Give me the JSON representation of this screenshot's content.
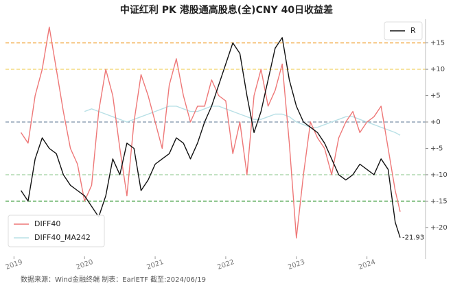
{
  "chart_data": {
    "type": "line",
    "title": "中证红利 PK 港股通高股息(全)CNY 40日收益差",
    "source": "数据来源：Wind金融终端 制表：EarlETF 截至:2024/06/19",
    "x": [
      2019.1,
      2019.2,
      2019.3,
      2019.4,
      2019.5,
      2019.6,
      2019.7,
      2019.8,
      2019.9,
      2020.0,
      2020.1,
      2020.2,
      2020.3,
      2020.4,
      2020.5,
      2020.6,
      2020.7,
      2020.8,
      2020.9,
      2021.0,
      2021.1,
      2021.2,
      2021.3,
      2021.4,
      2021.5,
      2021.6,
      2021.7,
      2021.8,
      2021.9,
      2022.0,
      2022.1,
      2022.2,
      2022.3,
      2022.4,
      2022.5,
      2022.6,
      2022.7,
      2022.8,
      2022.9,
      2023.0,
      2023.1,
      2023.2,
      2023.3,
      2023.4,
      2023.5,
      2023.6,
      2023.7,
      2023.8,
      2023.9,
      2024.0,
      2024.1,
      2024.2,
      2024.3,
      2024.4,
      2024.47
    ],
    "series": [
      {
        "name": "R",
        "color": "#111111",
        "legend_loc": "upper right",
        "values": [
          -13,
          -15,
          -7,
          -3,
          -5,
          -6,
          -10,
          -12,
          -13,
          -14,
          -16,
          -18,
          -14,
          -7,
          -10,
          -4,
          -5,
          -13,
          -11,
          -8,
          -7,
          -6,
          -3,
          -4,
          -7,
          -4,
          0,
          3,
          7,
          11,
          15,
          13,
          5,
          -2,
          2,
          8,
          14,
          16,
          8,
          3,
          0,
          -1,
          -2,
          -4,
          -7,
          -10,
          -11,
          -10,
          -8,
          -9,
          -10,
          -7,
          -9,
          -19,
          -21.93
        ],
        "value_labels": [
          null,
          null,
          null,
          null,
          null,
          null,
          null,
          null,
          null,
          null,
          null,
          null,
          null,
          null,
          null,
          null,
          null,
          null,
          null,
          null,
          null,
          null,
          null,
          null,
          null,
          null,
          null,
          null,
          null,
          null,
          null,
          null,
          null,
          null,
          null,
          null,
          null,
          null,
          null,
          null,
          null,
          null,
          null,
          null,
          null,
          null,
          null,
          null,
          null,
          null,
          null,
          null,
          null,
          null,
          "-21.93"
        ]
      },
      {
        "name": "DIFF40",
        "color": "#ee7777",
        "legend_loc": "lower left",
        "values": [
          -2,
          -4,
          5,
          10,
          18,
          10,
          2,
          -5,
          -8,
          -15,
          -12,
          2,
          10,
          5,
          -5,
          -14,
          0,
          9,
          5,
          0,
          -5,
          7,
          12,
          5,
          0,
          3,
          3,
          8,
          5,
          4,
          -6,
          0,
          -10,
          5,
          10,
          3,
          6,
          11,
          -4,
          -22,
          -10,
          0,
          -3,
          -5,
          -10,
          -3,
          0,
          2,
          -2,
          0,
          1,
          3,
          -5,
          -13,
          -17
        ]
      },
      {
        "name": "DIFF40_MA242",
        "color": "#b8e0e6",
        "legend_loc": "lower left",
        "values": [
          null,
          null,
          null,
          null,
          null,
          null,
          null,
          null,
          null,
          2,
          2.5,
          2,
          1.5,
          1,
          0.5,
          0,
          0.5,
          1,
          1.5,
          2,
          2.5,
          3,
          3,
          2.5,
          2,
          2,
          2.5,
          3,
          3,
          2.5,
          2,
          1.5,
          1,
          0.5,
          0.5,
          1,
          1.5,
          1.5,
          1,
          0,
          -0.5,
          -1,
          -1,
          -0.5,
          0,
          0.5,
          1,
          1,
          0.5,
          0,
          -0.5,
          -1,
          -1.5,
          -2,
          -2.5
        ]
      }
    ],
    "xlim": [
      2018.88,
      2024.83
    ],
    "xticks": [
      2019,
      2020,
      2021,
      2022,
      2023,
      2024
    ],
    "ylim": [
      -26,
      19.5
    ],
    "yticks": [
      {
        "value": 15,
        "label": "+15"
      },
      {
        "value": 10,
        "label": "+10"
      },
      {
        "value": 5,
        "label": "+5"
      },
      {
        "value": 0,
        "label": "+0"
      },
      {
        "value": -5,
        "label": "+-5"
      },
      {
        "value": -10,
        "label": "+-10"
      },
      {
        "value": -15,
        "label": "+-15"
      },
      {
        "value": -20,
        "label": "+-20"
      }
    ],
    "hlines": [
      {
        "value": 15,
        "color": "#f0a030"
      },
      {
        "value": 10,
        "color": "#f0d060"
      },
      {
        "value": 0,
        "color": "#7a8fa8"
      },
      {
        "value": -10,
        "color": "#9ccf9c"
      },
      {
        "value": -15,
        "color": "#3a9a3a"
      }
    ]
  }
}
